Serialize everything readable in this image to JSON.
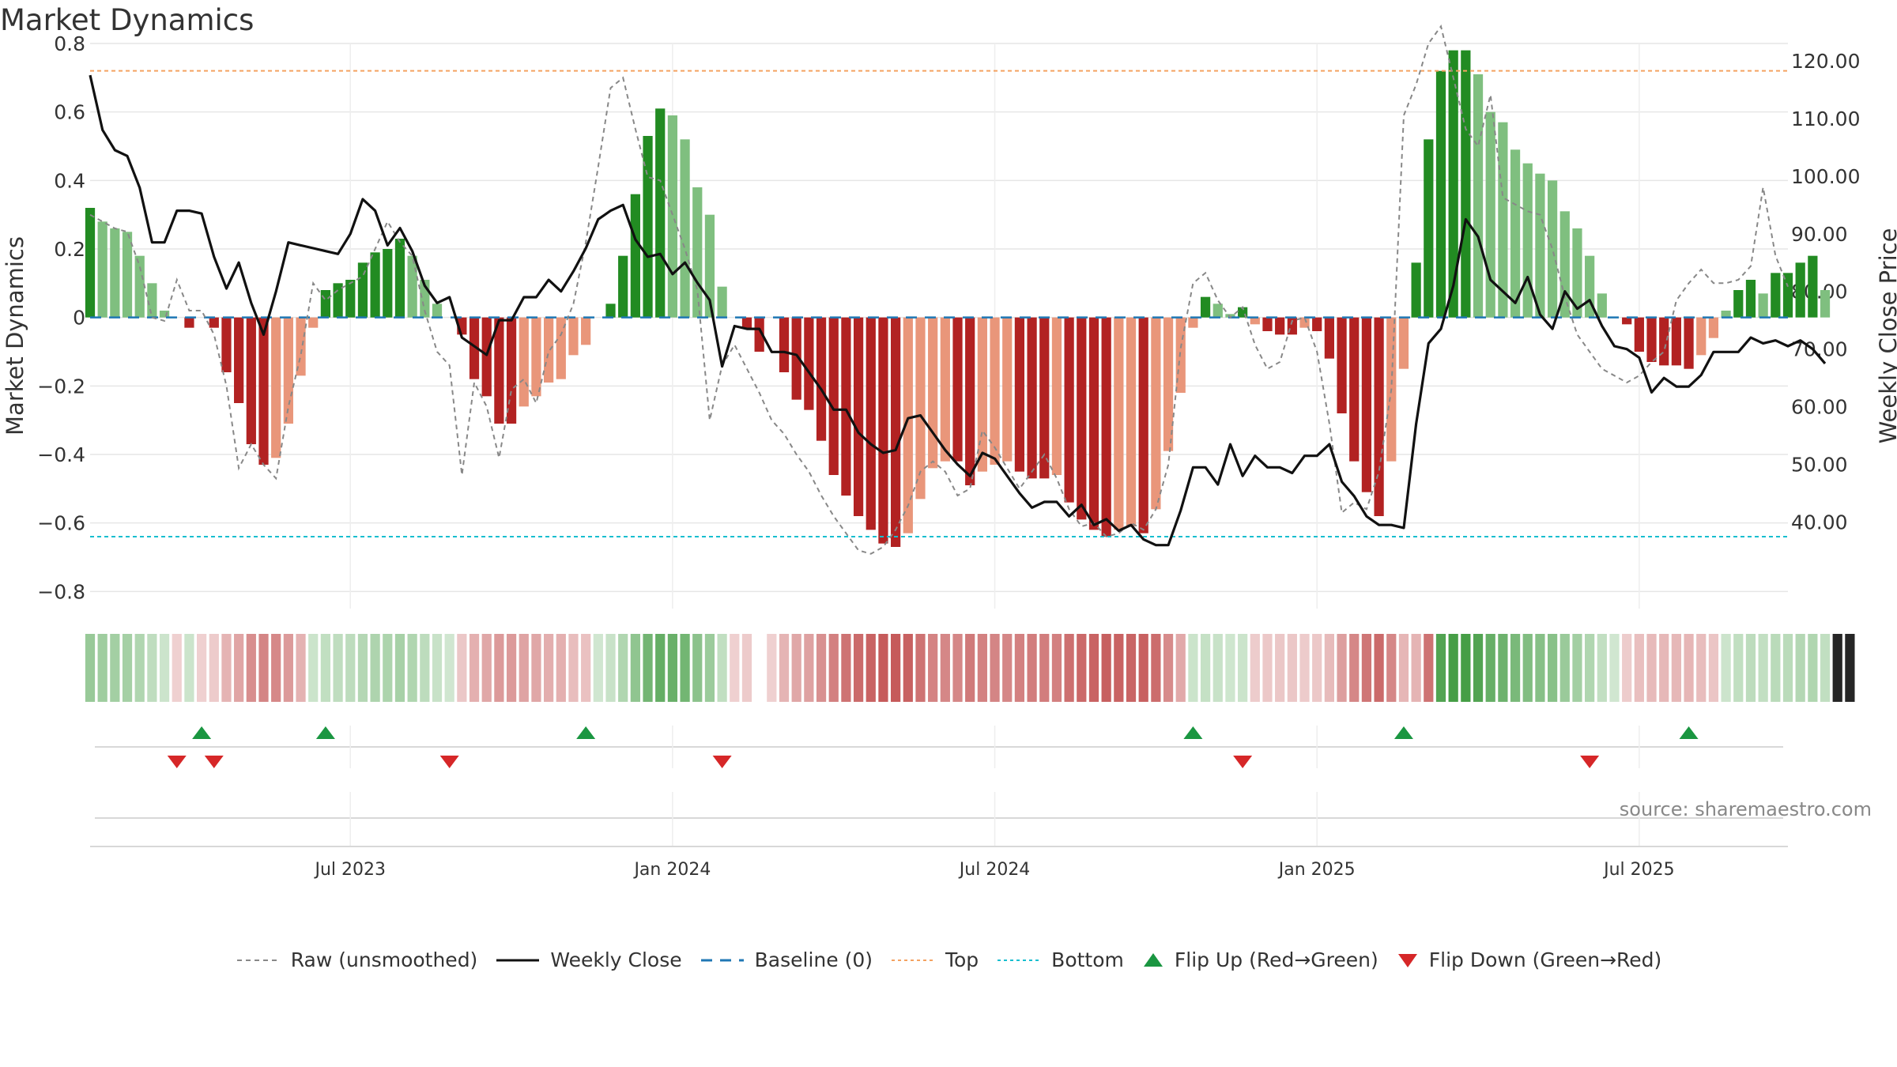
{
  "title": "Market Dynamics",
  "source": "source: sharemaestro.com",
  "chart_data": {
    "type": "bar",
    "left_axis": {
      "label": "Market Dynamics",
      "ylim": [
        -0.85,
        0.8
      ],
      "ticks": [
        0.8,
        0.6,
        0.4,
        0.2,
        0,
        -0.2,
        -0.4,
        -0.6,
        -0.8
      ],
      "tick_labels": [
        "0.8",
        "0.6",
        "0.4",
        "0.2",
        "0",
        "−0.2",
        "−0.4",
        "−0.6",
        "−0.8"
      ]
    },
    "right_axis": {
      "label": "Weekly Close Price",
      "ylim": [
        25,
        123
      ],
      "ticks": [
        120,
        110,
        100,
        90,
        80,
        70,
        60,
        50,
        40
      ],
      "tick_labels": [
        "120.00",
        "110.00",
        "100.00",
        "90.00",
        "80.00",
        "70.00",
        "60.00",
        "50.00",
        "40.00"
      ]
    },
    "x_axis": {
      "ticks": [
        {
          "label": "Jul 2023",
          "week": 21
        },
        {
          "label": "Jan 2024",
          "week": 47
        },
        {
          "label": "Jul 2024",
          "week": 73
        },
        {
          "label": "Jan 2025",
          "week": 99
        },
        {
          "label": "Jul 2025",
          "week": 125
        }
      ],
      "weeks": 138
    },
    "reference_lines": {
      "top": 0.72,
      "bottom": -0.64,
      "baseline": 0
    },
    "bars": [
      0.32,
      0.28,
      0.26,
      0.25,
      0.18,
      0.1,
      0.02,
      0.0,
      -0.03,
      0.0,
      -0.03,
      -0.16,
      -0.25,
      -0.37,
      -0.43,
      -0.41,
      -0.31,
      -0.17,
      -0.03,
      0.08,
      0.1,
      0.11,
      0.16,
      0.19,
      0.2,
      0.23,
      0.18,
      0.11,
      0.04,
      0.0,
      -0.05,
      -0.18,
      -0.23,
      -0.31,
      -0.31,
      -0.26,
      -0.23,
      -0.19,
      -0.18,
      -0.11,
      -0.08,
      0.0,
      0.04,
      0.18,
      0.36,
      0.53,
      0.61,
      0.59,
      0.52,
      0.38,
      0.3,
      0.09,
      0.0,
      -0.03,
      -0.1,
      0.0,
      -0.16,
      -0.24,
      -0.27,
      -0.36,
      -0.46,
      -0.52,
      -0.58,
      -0.62,
      -0.66,
      -0.67,
      -0.63,
      -0.53,
      -0.44,
      -0.42,
      -0.42,
      -0.49,
      -0.45,
      -0.43,
      -0.42,
      -0.45,
      -0.47,
      -0.47,
      -0.46,
      -0.54,
      -0.59,
      -0.62,
      -0.64,
      -0.62,
      -0.61,
      -0.63,
      -0.56,
      -0.39,
      -0.22,
      -0.03,
      0.06,
      0.04,
      0.01,
      0.03,
      -0.02,
      -0.04,
      -0.05,
      -0.05,
      -0.03,
      -0.04,
      -0.12,
      -0.28,
      -0.42,
      -0.51,
      -0.58,
      -0.42,
      -0.15,
      0.16,
      0.52,
      0.72,
      0.78,
      0.78,
      0.71,
      0.6,
      0.57,
      0.49,
      0.45,
      0.42,
      0.4,
      0.31,
      0.26,
      0.18,
      0.07,
      0.0,
      -0.02,
      -0.1,
      -0.13,
      -0.14,
      -0.14,
      -0.15,
      -0.11,
      -0.06,
      0.02,
      0.08,
      0.11,
      0.07,
      0.13,
      0.13,
      0.16,
      0.18,
      0.08
    ],
    "raw": [
      0.3,
      0.28,
      0.26,
      0.25,
      0.15,
      0.0,
      -0.01,
      0.11,
      0.02,
      0.02,
      -0.05,
      -0.2,
      -0.44,
      -0.37,
      -0.43,
      -0.47,
      -0.26,
      -0.11,
      0.1,
      0.05,
      0.08,
      0.1,
      0.12,
      0.2,
      0.28,
      0.22,
      0.18,
      0.02,
      -0.1,
      -0.14,
      -0.46,
      -0.19,
      -0.26,
      -0.41,
      -0.21,
      -0.18,
      -0.25,
      -0.1,
      -0.05,
      0.04,
      0.22,
      0.44,
      0.67,
      0.7,
      0.55,
      0.41,
      0.4,
      0.3,
      0.2,
      0.08,
      -0.3,
      -0.14,
      -0.08,
      -0.15,
      -0.22,
      -0.3,
      -0.34,
      -0.4,
      -0.45,
      -0.52,
      -0.58,
      -0.63,
      -0.68,
      -0.69,
      -0.67,
      -0.62,
      -0.55,
      -0.45,
      -0.42,
      -0.45,
      -0.52,
      -0.5,
      -0.33,
      -0.38,
      -0.44,
      -0.5,
      -0.45,
      -0.4,
      -0.47,
      -0.56,
      -0.61,
      -0.6,
      -0.64,
      -0.63,
      -0.6,
      -0.62,
      -0.56,
      -0.43,
      -0.09,
      0.1,
      0.13,
      0.05,
      0.0,
      0.03,
      -0.08,
      -0.15,
      -0.13,
      -0.01,
      0.0,
      -0.1,
      -0.31,
      -0.57,
      -0.54,
      -0.56,
      -0.45,
      -0.21,
      0.59,
      0.68,
      0.8,
      0.85,
      0.7,
      0.55,
      0.5,
      0.65,
      0.35,
      0.33,
      0.31,
      0.3,
      0.2,
      0.06,
      -0.05,
      -0.1,
      -0.15,
      -0.17,
      -0.19,
      -0.17,
      -0.13,
      -0.1,
      0.05,
      0.1,
      0.14,
      0.1,
      0.1,
      0.11,
      0.15,
      0.38,
      0.18,
      0.09
    ],
    "close": [
      117.5,
      108,
      104.5,
      103.5,
      98,
      88.5,
      88.5,
      94,
      94,
      93.5,
      86,
      80.5,
      85,
      78,
      72.5,
      80,
      88.5,
      88,
      87.5,
      87,
      86.5,
      90,
      96,
      94,
      88,
      91,
      87,
      81,
      78,
      79,
      72,
      70.5,
      69,
      75,
      75,
      79,
      79,
      82,
      80,
      83.5,
      87.5,
      92.5,
      94,
      95,
      89,
      86,
      86.5,
      83,
      85,
      81.5,
      78.5,
      67,
      74,
      73.5,
      73.5,
      69.5,
      69.5,
      69,
      66,
      63,
      59.5,
      59.5,
      55.5,
      53.5,
      52,
      52.5,
      58,
      58.5,
      55.5,
      52.5,
      50,
      48,
      52,
      51,
      48,
      45,
      42.5,
      43.5,
      43.5,
      41,
      43,
      39.5,
      40.5,
      38.5,
      39.5,
      37,
      36,
      36,
      42,
      49.5,
      49.5,
      46.5,
      53.5,
      48,
      51.5,
      49.5,
      49.5,
      48.5,
      51.5,
      51.5,
      53.5,
      47,
      44.5,
      41,
      39.5,
      39.5,
      39,
      57,
      71,
      73.5,
      81,
      92.5,
      89.5,
      82,
      80,
      78,
      82.5,
      76,
      73.5,
      80,
      77,
      78.5,
      74,
      70.5,
      70,
      68.5,
      62.5,
      65,
      63.5,
      63.5,
      65.5,
      69.5,
      69.5,
      69.5,
      72,
      71,
      71.5,
      70.5,
      71.5,
      70,
      67.5
    ],
    "regime_strip": [
      1,
      1,
      1,
      1,
      1,
      1,
      1,
      -1,
      1,
      -1,
      -1,
      -1,
      -1,
      -1,
      -1,
      -1,
      -1,
      -1,
      1,
      1,
      1,
      1,
      1,
      1,
      1,
      1,
      1,
      1,
      1,
      1,
      -1,
      -1,
      -1,
      -1,
      -1,
      -1,
      -1,
      -1,
      -1,
      -1,
      -1,
      1,
      1,
      1,
      1,
      1,
      1,
      1,
      1,
      1,
      1,
      1,
      -1,
      -1,
      0,
      -1,
      -1,
      -1,
      -1,
      -1,
      -1,
      -1,
      -1,
      -1,
      -1,
      -1,
      -1,
      -1,
      -1,
      -1,
      -1,
      -1,
      -1,
      -1,
      -1,
      -1,
      -1,
      -1,
      -1,
      -1,
      -1,
      -1,
      -1,
      -1,
      -1,
      -1,
      -1,
      -1,
      -1,
      1,
      1,
      1,
      1,
      1,
      -1,
      -1,
      -1,
      -1,
      -1,
      -1,
      -1,
      -1,
      -1,
      -1,
      -1,
      -1,
      -1,
      -1,
      -1,
      1,
      1,
      1,
      1,
      1,
      1,
      1,
      1,
      1,
      1,
      1,
      1,
      1,
      1,
      1,
      -1,
      -1,
      -1,
      -1,
      -1,
      -1,
      -1,
      -1,
      1,
      1,
      1,
      1,
      1,
      1,
      1,
      1,
      1,
      1,
      1
    ],
    "flip_up_weeks": [
      9,
      19,
      40,
      89,
      106,
      129
    ],
    "flip_down_weeks": [
      7,
      10,
      29,
      51,
      93,
      121
    ],
    "legend": [
      {
        "key": "raw",
        "label": "Raw (unsmoothed)"
      },
      {
        "key": "close",
        "label": "Weekly Close"
      },
      {
        "key": "baseline",
        "label": "Baseline (0)"
      },
      {
        "key": "top",
        "label": "Top"
      },
      {
        "key": "bottom",
        "label": "Bottom"
      },
      {
        "key": "flip_up",
        "label": "Flip Up (Red→Green)"
      },
      {
        "key": "flip_down",
        "label": "Flip Down (Green→Red)"
      }
    ],
    "colors": {
      "bar_green_strong": "#228b22",
      "bar_green_light": "#7fbf7f",
      "bar_red_strong": "#b22222",
      "bar_red_light": "#e9967a",
      "close": "#111111",
      "raw": "#888888",
      "baseline": "#1f77b4",
      "top": "#f4a261",
      "bottom": "#17becf",
      "flip_up": "#1a9641",
      "flip_down": "#d62728"
    }
  }
}
